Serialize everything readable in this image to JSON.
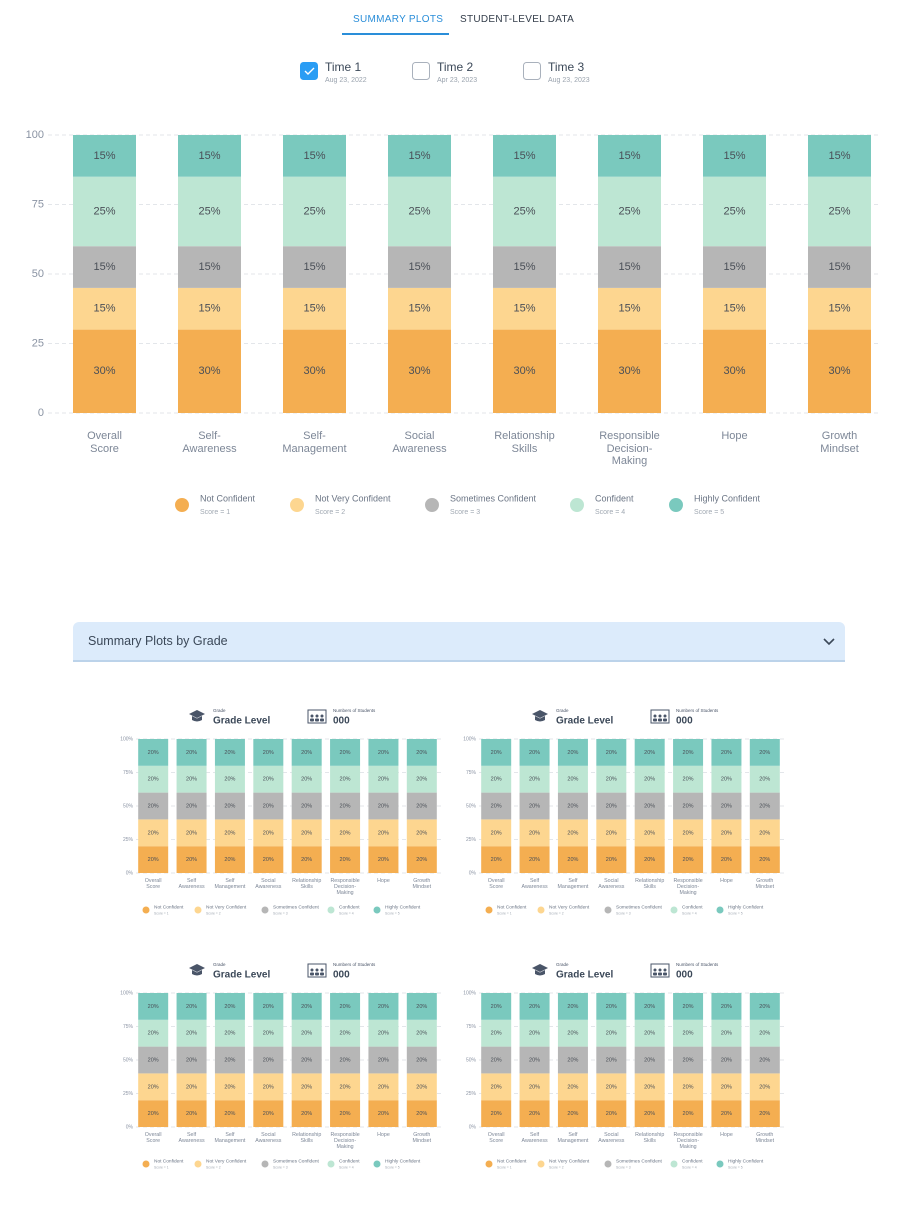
{
  "tabs": [
    "SUMMARY PLOTS",
    "STUDENT-LEVEL DATA"
  ],
  "times": [
    {
      "label": "Time 1",
      "date": "Aug 23, 2022",
      "checked": true
    },
    {
      "label": "Time 2",
      "date": "Apr 23, 2023",
      "checked": false
    },
    {
      "label": "Time 3",
      "date": "Aug 23, 2023",
      "checked": false
    }
  ],
  "accordion": {
    "title": "Summary Plots by Grade"
  },
  "chart_data": [
    {
      "type": "bar",
      "stacked": true,
      "grid": true,
      "categories": [
        "Overall Score",
        "Self-Awareness",
        "Self-Management",
        "Social Awareness",
        "Relationship Skills",
        "Responsible Decision-Making",
        "Hope",
        "Growth Mindset"
      ],
      "ylim": [
        0,
        100
      ],
      "yticks": [
        0,
        25,
        50,
        75,
        100
      ],
      "series": [
        {
          "name": "Not Confident",
          "sublabel": "Score = 1",
          "color": "#f4ae51",
          "values": [
            30,
            30,
            30,
            30,
            30,
            30,
            30,
            30
          ],
          "value_labels": [
            "30%",
            "30%",
            "30%",
            "30%",
            "30%",
            "30%",
            "30%",
            "30%"
          ]
        },
        {
          "name": "Not Very Confident",
          "sublabel": "Score = 2",
          "color": "#fdd690",
          "values": [
            15,
            15,
            15,
            15,
            15,
            15,
            15,
            15
          ],
          "value_labels": [
            "15%",
            "15%",
            "15%",
            "15%",
            "15%",
            "15%",
            "15%",
            "15%"
          ]
        },
        {
          "name": "Sometimes Confident",
          "sublabel": "Score = 3",
          "color": "#b6b6b6",
          "values": [
            15,
            15,
            15,
            15,
            15,
            15,
            15,
            15
          ],
          "value_labels": [
            "15%",
            "15%",
            "15%",
            "15%",
            "15%",
            "15%",
            "15%",
            "15%"
          ]
        },
        {
          "name": "Confident",
          "sublabel": "Score = 4",
          "color": "#bde6d3",
          "values": [
            25,
            25,
            25,
            25,
            25,
            25,
            25,
            25
          ],
          "value_labels": [
            "25%",
            "25%",
            "25%",
            "25%",
            "25%",
            "25%",
            "25%",
            "25%"
          ]
        },
        {
          "name": "Highly Confident",
          "sublabel": "Score = 5",
          "color": "#7ac9be",
          "values": [
            15,
            15,
            15,
            15,
            15,
            15,
            15,
            15
          ],
          "value_labels": [
            "15%",
            "15%",
            "15%",
            "15%",
            "15%",
            "15%",
            "15%",
            "15%"
          ]
        }
      ]
    },
    {
      "type": "bar",
      "stacked": true,
      "grid": true,
      "grade_caption": "Grade",
      "grade": "Grade Level",
      "students_caption": "Numbers of Students",
      "students": "000",
      "categories": [
        "Overall Score",
        "Self Awareness",
        "Self Management",
        "Social Awareness",
        "Relationship Skills",
        "Responsible Decision-Making",
        "Hope",
        "Growth Mindset"
      ],
      "ylim": [
        0,
        100
      ],
      "yticks": [
        {
          "value": 0,
          "label": "0%"
        },
        {
          "value": 25,
          "label": "25%"
        },
        {
          "value": 50,
          "label": "50%"
        },
        {
          "value": 75,
          "label": "75%"
        },
        {
          "value": 100,
          "label": "100%"
        }
      ],
      "series": [
        {
          "name": "Not Confident",
          "sublabel": "Score = 1",
          "color": "#f4ae51",
          "values": [
            20,
            20,
            20,
            20,
            20,
            20,
            20,
            20
          ],
          "value_labels": [
            "20%",
            "20%",
            "20%",
            "20%",
            "20%",
            "20%",
            "20%",
            "20%"
          ]
        },
        {
          "name": "Not Very Confident",
          "sublabel": "Score = 2",
          "color": "#fdd690",
          "values": [
            20,
            20,
            20,
            20,
            20,
            20,
            20,
            20
          ],
          "value_labels": [
            "20%",
            "20%",
            "20%",
            "20%",
            "20%",
            "20%",
            "20%",
            "20%"
          ]
        },
        {
          "name": "Sometimes Confident",
          "sublabel": "Score = 3",
          "color": "#b6b6b6",
          "values": [
            20,
            20,
            20,
            20,
            20,
            20,
            20,
            20
          ],
          "value_labels": [
            "20%",
            "20%",
            "20%",
            "20%",
            "20%",
            "20%",
            "20%",
            "20%"
          ]
        },
        {
          "name": "Confident",
          "sublabel": "Score = 4",
          "color": "#bde6d3",
          "values": [
            20,
            20,
            20,
            20,
            20,
            20,
            20,
            20
          ],
          "value_labels": [
            "20%",
            "20%",
            "20%",
            "20%",
            "20%",
            "20%",
            "20%",
            "20%"
          ]
        },
        {
          "name": "Highly Confident",
          "sublabel": "Score = 5",
          "color": "#7ac9be",
          "values": [
            20,
            20,
            20,
            20,
            20,
            20,
            20,
            20
          ],
          "value_labels": [
            "20%",
            "20%",
            "20%",
            "20%",
            "20%",
            "20%",
            "20%",
            "20%"
          ]
        }
      ]
    },
    {
      "type": "bar",
      "stacked": true,
      "grid": true,
      "grade_caption": "Grade",
      "grade": "Grade Level",
      "students_caption": "Numbers of Students",
      "students": "000",
      "categories": [
        "Overall Score",
        "Self Awareness",
        "Self Management",
        "Social Awareness",
        "Relationship Skills",
        "Responsible Decision-Making",
        "Hope",
        "Growth Mindset"
      ],
      "ylim": [
        0,
        100
      ],
      "yticks": [
        {
          "value": 0,
          "label": "0%"
        },
        {
          "value": 25,
          "label": "25%"
        },
        {
          "value": 50,
          "label": "50%"
        },
        {
          "value": 75,
          "label": "75%"
        },
        {
          "value": 100,
          "label": "100%"
        }
      ],
      "series": [
        {
          "name": "Not Confident",
          "sublabel": "Score = 1",
          "color": "#f4ae51",
          "values": [
            20,
            20,
            20,
            20,
            20,
            20,
            20,
            20
          ],
          "value_labels": [
            "20%",
            "20%",
            "20%",
            "20%",
            "20%",
            "20%",
            "20%",
            "20%"
          ]
        },
        {
          "name": "Not Very Confident",
          "sublabel": "Score = 2",
          "color": "#fdd690",
          "values": [
            20,
            20,
            20,
            20,
            20,
            20,
            20,
            20
          ],
          "value_labels": [
            "20%",
            "20%",
            "20%",
            "20%",
            "20%",
            "20%",
            "20%",
            "20%"
          ]
        },
        {
          "name": "Sometimes Confident",
          "sublabel": "Score = 3",
          "color": "#b6b6b6",
          "values": [
            20,
            20,
            20,
            20,
            20,
            20,
            20,
            20
          ],
          "value_labels": [
            "20%",
            "20%",
            "20%",
            "20%",
            "20%",
            "20%",
            "20%",
            "20%"
          ]
        },
        {
          "name": "Confident",
          "sublabel": "Score = 4",
          "color": "#bde6d3",
          "values": [
            20,
            20,
            20,
            20,
            20,
            20,
            20,
            20
          ],
          "value_labels": [
            "20%",
            "20%",
            "20%",
            "20%",
            "20%",
            "20%",
            "20%",
            "20%"
          ]
        },
        {
          "name": "Highly Confident",
          "sublabel": "Score = 5",
          "color": "#7ac9be",
          "values": [
            20,
            20,
            20,
            20,
            20,
            20,
            20,
            20
          ],
          "value_labels": [
            "20%",
            "20%",
            "20%",
            "20%",
            "20%",
            "20%",
            "20%",
            "20%"
          ]
        }
      ]
    },
    {
      "type": "bar",
      "stacked": true,
      "grid": true,
      "grade_caption": "Grade",
      "grade": "Grade Level",
      "students_caption": "Numbers of Students",
      "students": "000",
      "categories": [
        "Overall Score",
        "Self Awareness",
        "Self Management",
        "Social Awareness",
        "Relationship Skills",
        "Responsible Decision-Making",
        "Hope",
        "Growth Mindset"
      ],
      "ylim": [
        0,
        100
      ],
      "yticks": [
        {
          "value": 0,
          "label": "0%"
        },
        {
          "value": 25,
          "label": "25%"
        },
        {
          "value": 50,
          "label": "50%"
        },
        {
          "value": 75,
          "label": "75%"
        },
        {
          "value": 100,
          "label": "100%"
        }
      ],
      "series": [
        {
          "name": "Not Confident",
          "sublabel": "Score = 1",
          "color": "#f4ae51",
          "values": [
            20,
            20,
            20,
            20,
            20,
            20,
            20,
            20
          ],
          "value_labels": [
            "20%",
            "20%",
            "20%",
            "20%",
            "20%",
            "20%",
            "20%",
            "20%"
          ]
        },
        {
          "name": "Not Very Confident",
          "sublabel": "Score = 2",
          "color": "#fdd690",
          "values": [
            20,
            20,
            20,
            20,
            20,
            20,
            20,
            20
          ],
          "value_labels": [
            "20%",
            "20%",
            "20%",
            "20%",
            "20%",
            "20%",
            "20%",
            "20%"
          ]
        },
        {
          "name": "Sometimes Confident",
          "sublabel": "Score = 3",
          "color": "#b6b6b6",
          "values": [
            20,
            20,
            20,
            20,
            20,
            20,
            20,
            20
          ],
          "value_labels": [
            "20%",
            "20%",
            "20%",
            "20%",
            "20%",
            "20%",
            "20%",
            "20%"
          ]
        },
        {
          "name": "Confident",
          "sublabel": "Score = 4",
          "color": "#bde6d3",
          "values": [
            20,
            20,
            20,
            20,
            20,
            20,
            20,
            20
          ],
          "value_labels": [
            "20%",
            "20%",
            "20%",
            "20%",
            "20%",
            "20%",
            "20%",
            "20%"
          ]
        },
        {
          "name": "Highly Confident",
          "sublabel": "Score = 5",
          "color": "#7ac9be",
          "values": [
            20,
            20,
            20,
            20,
            20,
            20,
            20,
            20
          ],
          "value_labels": [
            "20%",
            "20%",
            "20%",
            "20%",
            "20%",
            "20%",
            "20%",
            "20%"
          ]
        }
      ]
    },
    {
      "type": "bar",
      "stacked": true,
      "grid": true,
      "grade_caption": "Grade",
      "grade": "Grade Level",
      "students_caption": "Numbers of Students",
      "students": "000",
      "categories": [
        "Overall Score",
        "Self Awareness",
        "Self Management",
        "Social Awareness",
        "Relationship Skills",
        "Responsible Decision-Making",
        "Hope",
        "Growth Mindset"
      ],
      "ylim": [
        0,
        100
      ],
      "yticks": [
        {
          "value": 0,
          "label": "0%"
        },
        {
          "value": 25,
          "label": "25%"
        },
        {
          "value": 50,
          "label": "50%"
        },
        {
          "value": 75,
          "label": "75%"
        },
        {
          "value": 100,
          "label": "100%"
        }
      ],
      "series": [
        {
          "name": "Not Confident",
          "sublabel": "Score = 1",
          "color": "#f4ae51",
          "values": [
            20,
            20,
            20,
            20,
            20,
            20,
            20,
            20
          ],
          "value_labels": [
            "20%",
            "20%",
            "20%",
            "20%",
            "20%",
            "20%",
            "20%",
            "20%"
          ]
        },
        {
          "name": "Not Very Confident",
          "sublabel": "Score = 2",
          "color": "#fdd690",
          "values": [
            20,
            20,
            20,
            20,
            20,
            20,
            20,
            20
          ],
          "value_labels": [
            "20%",
            "20%",
            "20%",
            "20%",
            "20%",
            "20%",
            "20%",
            "20%"
          ]
        },
        {
          "name": "Sometimes Confident",
          "sublabel": "Score = 3",
          "color": "#b6b6b6",
          "values": [
            20,
            20,
            20,
            20,
            20,
            20,
            20,
            20
          ],
          "value_labels": [
            "20%",
            "20%",
            "20%",
            "20%",
            "20%",
            "20%",
            "20%",
            "20%"
          ]
        },
        {
          "name": "Confident",
          "sublabel": "Score = 4",
          "color": "#bde6d3",
          "values": [
            20,
            20,
            20,
            20,
            20,
            20,
            20,
            20
          ],
          "value_labels": [
            "20%",
            "20%",
            "20%",
            "20%",
            "20%",
            "20%",
            "20%",
            "20%"
          ]
        },
        {
          "name": "Highly Confident",
          "sublabel": "Score = 5",
          "color": "#7ac9be",
          "values": [
            20,
            20,
            20,
            20,
            20,
            20,
            20,
            20
          ],
          "value_labels": [
            "20%",
            "20%",
            "20%",
            "20%",
            "20%",
            "20%",
            "20%",
            "20%"
          ]
        }
      ]
    }
  ]
}
